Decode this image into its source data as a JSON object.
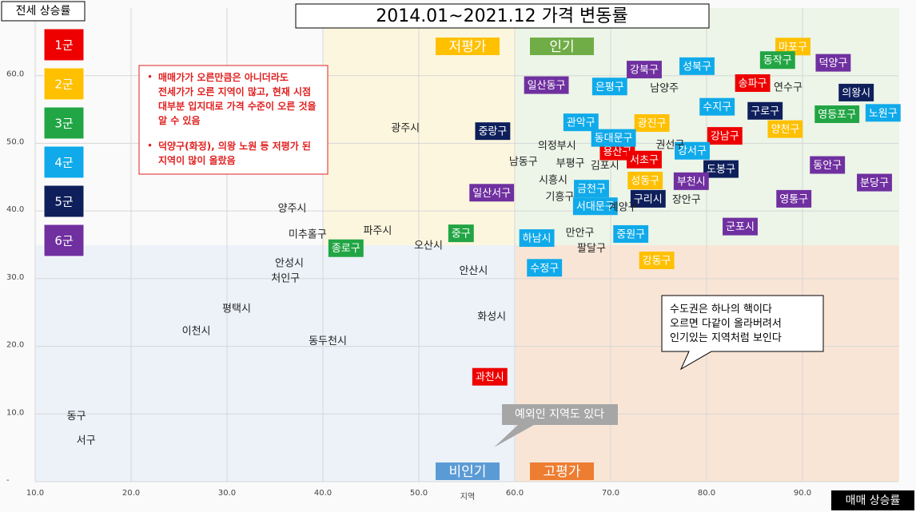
{
  "chart_data": {
    "type": "scatter",
    "title": "2014.01~2021.12 가격 변동률",
    "y_label": "전세 상승률",
    "x_label": "매매 상승률",
    "x_axis_title": "지역",
    "xlim": [
      10,
      100
    ],
    "ylim": [
      0,
      70
    ],
    "xticks": [
      {
        "value": 10,
        "label": "10.0"
      },
      {
        "value": 20,
        "label": "20.0"
      },
      {
        "value": 30,
        "label": "30.0"
      },
      {
        "value": 40,
        "label": "40.0"
      },
      {
        "value": 50,
        "label": "50.0"
      },
      {
        "value": 60,
        "label": "60.0"
      },
      {
        "value": 70,
        "label": "70.0"
      },
      {
        "value": 80,
        "label": "80.0"
      },
      {
        "value": 90,
        "label": "90.0"
      }
    ],
    "yticks": [
      {
        "value": 0,
        "label": "-"
      },
      {
        "value": 10,
        "label": "10.0"
      },
      {
        "value": 20,
        "label": "20.0"
      },
      {
        "value": 30,
        "label": "30.0"
      },
      {
        "value": 40,
        "label": "40.0"
      },
      {
        "value": 50,
        "label": "50.0"
      },
      {
        "value": 60,
        "label": "60.0"
      }
    ],
    "grid": true,
    "series": [
      {
        "name": "1군",
        "color": "#ee0000",
        "names": [
          "송파구",
          "강남구",
          "용산구",
          "서초구",
          "과천시"
        ],
        "x": [
          84.8,
          81.9,
          70.7,
          73.5,
          57.4
        ],
        "values": [
          58.9,
          51.1,
          48.8,
          47.6,
          15.5
        ]
      },
      {
        "name": "2군",
        "color": "#ffc000",
        "names": [
          "마포구",
          "광진구",
          "양천구",
          "성동구",
          "강동구"
        ],
        "x": [
          89.0,
          74.3,
          88.2,
          73.6,
          74.8
        ],
        "values": [
          64.3,
          53.0,
          52.1,
          44.5,
          32.7
        ]
      },
      {
        "name": "3군",
        "color": "#22a544",
        "names": [
          "동작구",
          "영등포구",
          "중구",
          "종로구"
        ],
        "x": [
          87.4,
          93.6,
          54.4,
          42.4
        ],
        "values": [
          62.3,
          54.3,
          36.7,
          34.5
        ]
      },
      {
        "name": "4군",
        "color": "#10aaea",
        "names": [
          "성북구",
          "은평구",
          "수지구",
          "노원구",
          "관악구",
          "동대문구",
          "강서구",
          "금천구",
          "서대문구",
          "하남시",
          "중원구",
          "수정구"
        ],
        "x": [
          79.0,
          69.9,
          81.1,
          98.4,
          66.9,
          70.3,
          78.5,
          68.0,
          68.4,
          62.3,
          72.1,
          63.1
        ],
        "values": [
          61.4,
          58.4,
          55.4,
          54.5,
          53.1,
          50.8,
          48.9,
          43.3,
          40.7,
          36.0,
          36.6,
          31.6
        ]
      },
      {
        "name": "5군",
        "color": "#0e1f5b",
        "names": [
          "의왕시",
          "구로구",
          "중랑구",
          "도봉구",
          "구리시"
        ],
        "x": [
          95.6,
          86.1,
          57.7,
          81.5,
          73.9
        ],
        "values": [
          57.5,
          54.8,
          51.8,
          46.2,
          41.8
        ]
      },
      {
        "name": "6군",
        "color": "#7030a0",
        "names": [
          "강북구",
          "덕양구",
          "일산동구",
          "동안구",
          "분당구",
          "부천시",
          "일산서구",
          "영통구",
          "군포시"
        ],
        "x": [
          73.5,
          93.2,
          63.3,
          92.6,
          97.5,
          78.4,
          57.6,
          89.1,
          83.5
        ],
        "values": [
          60.9,
          61.9,
          58.6,
          46.8,
          44.2,
          44.4,
          42.7,
          41.8,
          37.7
        ]
      },
      {
        "color": "#222222",
        "names": [
          "남양주",
          "연수구",
          "광주시",
          "의정부시",
          "권선구",
          "남동구",
          "부평구",
          "김포시",
          "시흥시",
          "기흥구",
          "장안구",
          "계양구",
          "양주시",
          "미추홀구",
          "파주시",
          "오산시",
          "만안구",
          "팔달구",
          "안성시",
          "처인구",
          "안산시",
          "평택시",
          "화성시",
          "이천시",
          "동두천시",
          "동구",
          "서구"
        ],
        "x": [
          75.6,
          88.5,
          48.6,
          64.4,
          76.2,
          60.9,
          65.8,
          69.4,
          64.0,
          64.7,
          77.9,
          71.3,
          36.8,
          38.4,
          45.7,
          51.0,
          66.8,
          68.0,
          36.5,
          36.1,
          55.7,
          31.0,
          57.6,
          26.8,
          40.5,
          14.3,
          15.3
        ],
        "values": [
          58.1,
          58.2,
          52.2,
          49.6,
          49.7,
          47.2,
          47.0,
          46.6,
          44.5,
          42.0,
          41.6,
          40.5,
          40.3,
          36.5,
          37.0,
          34.8,
          36.7,
          34.4,
          32.2,
          30.0,
          31.1,
          25.5,
          24.3,
          22.2,
          20.7,
          9.6,
          6.0
        ]
      }
    ],
    "quadrant_labels": [
      {
        "text": "저평가",
        "color": "#ffc000"
      },
      {
        "text": "인기",
        "color": "#70ad47"
      },
      {
        "text": "비인기",
        "color": "#5b9bd5"
      },
      {
        "text": "고평가",
        "color": "#ed7d31"
      }
    ],
    "notes": [
      "매매가가 오른만큼은 아니더라도 전세가가 오른 지역이 많고, 현재 시점 대부분 입지대로 가격 수준이 오른 것을 알 수 있음",
      "덕양구(화정), 의왕 노원 등 저평가 된 지역이 많이 올랐음"
    ],
    "callout": [
      "수도권은 하나의 핵이다",
      "오르면 다같이 올라버려서",
      "인기있는 지역처럼 보인다"
    ],
    "exception_note": "예외인 지역도 있다"
  }
}
